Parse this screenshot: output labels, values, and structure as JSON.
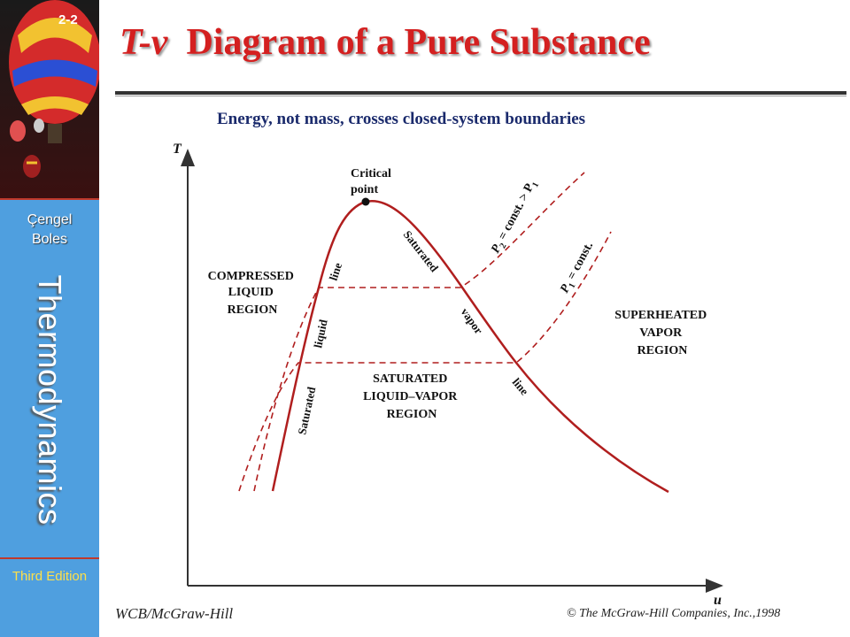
{
  "sidebar": {
    "slide_number": "2-2",
    "author_line1": "Çengel",
    "author_line2": "Boles",
    "book_title": "Thermodynamics",
    "edition": "Third Edition"
  },
  "header": {
    "title_italic": "T-v",
    "title_rest": "Diagram of a Pure Substance",
    "subtitle": "Energy, not mass, crosses closed-system boundaries"
  },
  "diagram": {
    "axis_y_label": "T",
    "axis_x_label": "u",
    "critical_line1": "Critical",
    "critical_line2": "point",
    "compressed_line1": "COMPRESSED",
    "compressed_line2": "LIQUID",
    "compressed_line3": "REGION",
    "superheated_line1": "SUPERHEATED",
    "superheated_line2": "VAPOR",
    "superheated_line3": "REGION",
    "mixture_line1": "SATURATED",
    "mixture_line2": "LIQUID–VAPOR",
    "mixture_line3": "REGION",
    "sat_liquid_word1": "Saturated",
    "sat_liquid_word2": "liquid",
    "sat_liquid_word3": "line",
    "sat_vapor_word1": "Saturated",
    "sat_vapor_word2": "vapor",
    "sat_vapor_word3": "line",
    "p2_label": "P",
    "p2_sub": "2",
    "p2_rest": " = const. > P",
    "p2_sub2": "1",
    "p1_label": "P",
    "p1_sub": "1",
    "p1_rest": " = const.",
    "curve_color": "#b01e1e",
    "axis_color": "#333333"
  },
  "footer": {
    "publisher": "WCB/McGraw-Hill",
    "copyright": "© The McGraw-Hill Companies, Inc.,1998"
  }
}
